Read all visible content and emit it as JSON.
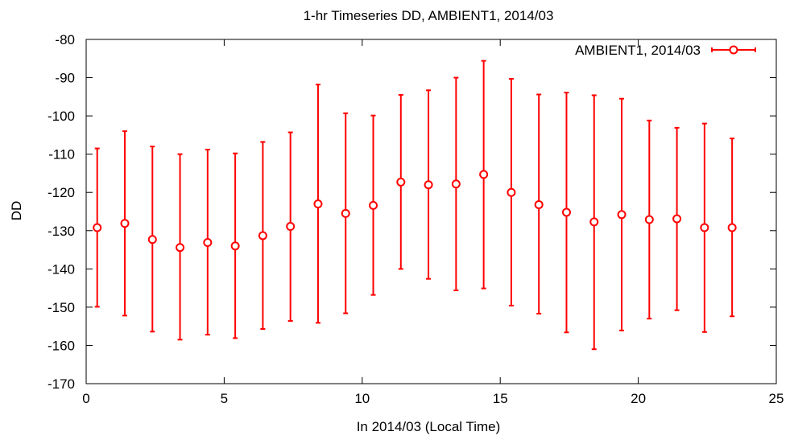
{
  "chart_data": {
    "type": "scatter",
    "title": "1-hr Timeseries DD, AMBIENT1, 2014/03",
    "xlabel": "In 2014/03 (Local Time)",
    "ylabel": "DD",
    "xlim": [
      0,
      25
    ],
    "ylim": [
      -170,
      -80
    ],
    "x_ticks": [
      0,
      5,
      10,
      15,
      20,
      25
    ],
    "y_ticks": [
      -80,
      -90,
      -100,
      -110,
      -120,
      -130,
      -140,
      -150,
      -160,
      -170
    ],
    "grid": false,
    "legend_position": "top-right",
    "colors": {
      "series": "#ff0000",
      "axes": "#000000",
      "background": "#ffffff"
    },
    "series": [
      {
        "name": "AMBIENT1, 2014/03",
        "marker": "open-circle",
        "error_bars": true,
        "x": [
          0.4,
          1.4,
          2.4,
          3.4,
          4.4,
          5.4,
          6.4,
          7.4,
          8.4,
          9.4,
          10.4,
          11.4,
          12.4,
          13.4,
          14.4,
          15.4,
          16.4,
          17.4,
          18.4,
          19.4,
          20.4,
          21.4,
          22.4,
          23.4
        ],
        "y": [
          -129.2,
          -128.1,
          -132.3,
          -134.4,
          -133.1,
          -134.0,
          -131.3,
          -128.9,
          -123.0,
          -125.5,
          -123.4,
          -117.3,
          -118.0,
          -117.8,
          -115.3,
          -120.0,
          -123.2,
          -125.2,
          -127.7,
          -125.8,
          -127.1,
          -126.9,
          -129.2,
          -129.2
        ],
        "y_low": [
          -149.9,
          -152.2,
          -156.4,
          -158.5,
          -157.2,
          -158.1,
          -155.7,
          -153.6,
          -154.1,
          -151.6,
          -146.8,
          -140.0,
          -142.6,
          -145.6,
          -145.1,
          -149.6,
          -151.7,
          -156.6,
          -161.0,
          -156.1,
          -153.0,
          -150.8,
          -156.5,
          -152.4
        ],
        "y_high": [
          -108.5,
          -104.0,
          -108.0,
          -110.0,
          -108.8,
          -109.8,
          -106.8,
          -104.3,
          -91.8,
          -99.3,
          -99.9,
          -94.5,
          -93.3,
          -90.0,
          -85.6,
          -90.3,
          -94.4,
          -93.9,
          -94.6,
          -95.5,
          -101.2,
          -103.1,
          -102.0,
          -105.9
        ]
      }
    ]
  }
}
